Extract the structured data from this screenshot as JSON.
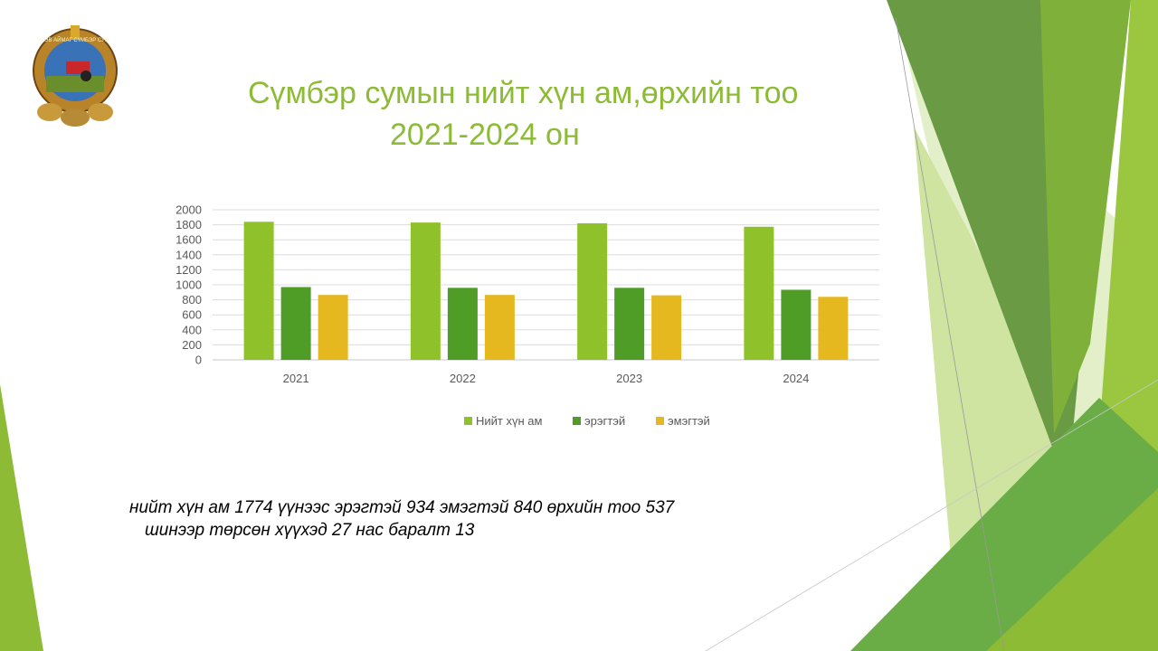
{
  "slide": {
    "title_line1": "Сүмбэр сумын нийт хүн ам,өрхийн тоо",
    "title_line2": "2021-2024 он",
    "note_line1": "нийт хүн ам 1774 үүнээс эрэгтэй 934 эмэгтэй  840 өрхийн тоо 537",
    "note_line2": "шинээр төрсөн хүүхэд 27 нас баралт 13",
    "logo_text": "ТӨВ АЙМАГ СҮМБЭР СУМ"
  },
  "colors": {
    "title": "#8dbb35",
    "series": [
      "#8fc22a",
      "#4f9d26",
      "#e6b820"
    ]
  },
  "chart_data": {
    "type": "bar",
    "title": "",
    "xlabel": "",
    "ylabel": "",
    "categories": [
      "2021",
      "2022",
      "2023",
      "2024"
    ],
    "series": [
      {
        "name": "Нийт хүн ам",
        "values": [
          1840,
          1830,
          1820,
          1774
        ]
      },
      {
        "name": "эрэгтэй",
        "values": [
          970,
          960,
          960,
          934
        ]
      },
      {
        "name": "эмэгтэй",
        "values": [
          865,
          865,
          860,
          840
        ]
      }
    ],
    "ylim": [
      0,
      2000
    ],
    "yticks": [
      "0",
      "200",
      "400",
      "600",
      "800",
      "1000",
      "1200",
      "1400",
      "1600",
      "1800",
      "2000"
    ],
    "grid": true,
    "legend": "bottom"
  }
}
